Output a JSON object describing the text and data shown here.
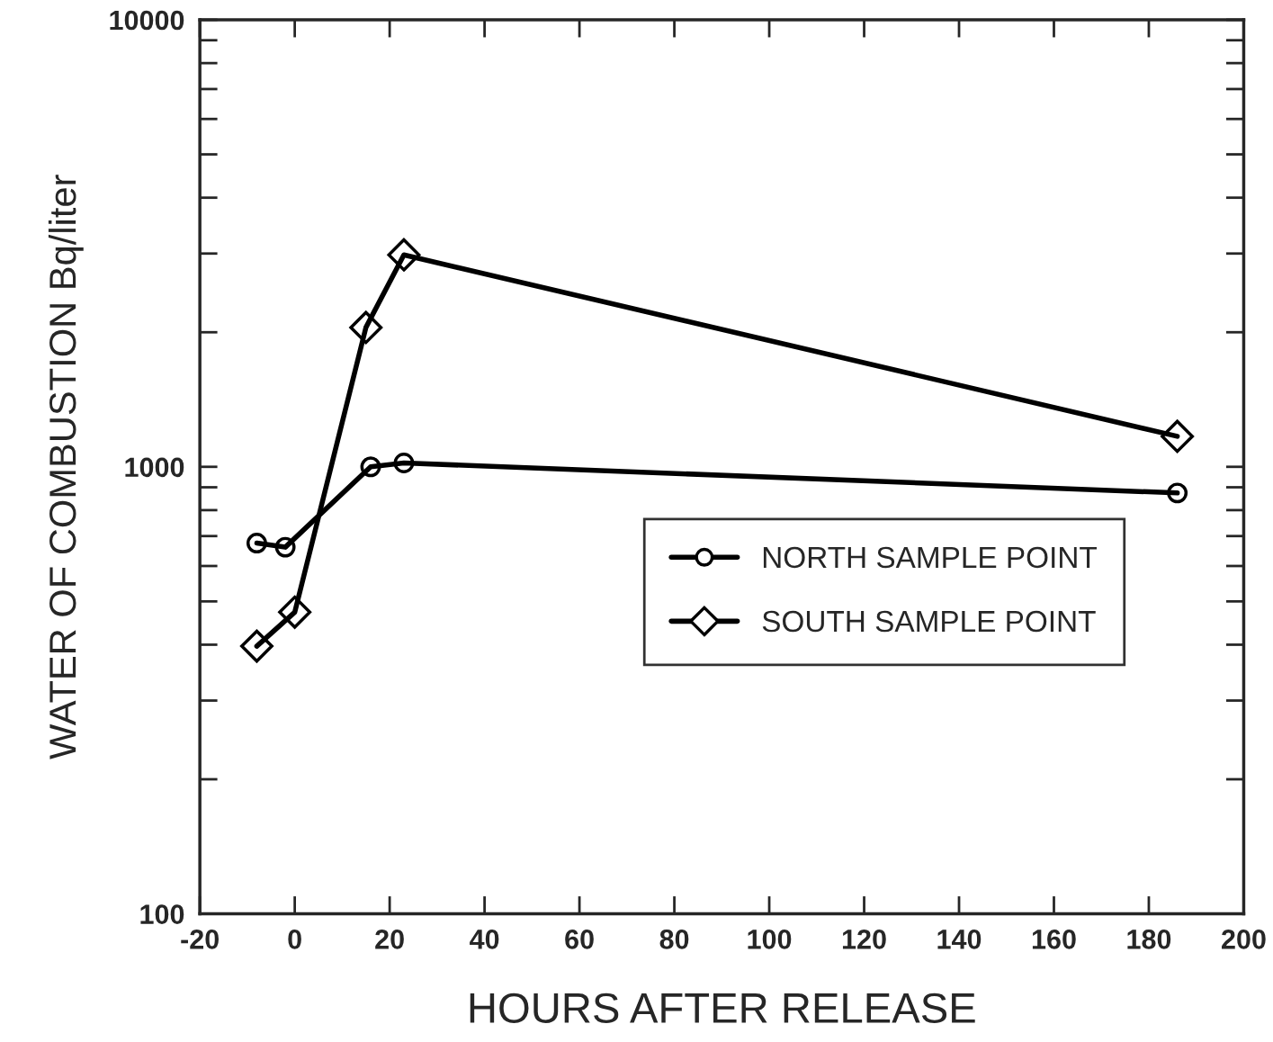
{
  "chart_data": {
    "type": "line",
    "xlabel": "HOURS AFTER RELEASE",
    "ylabel": "WATER OF COMBUSTION Bq/liter",
    "log": "y",
    "xlim": [
      -20,
      200
    ],
    "xticks": [
      -20,
      0,
      20,
      40,
      60,
      80,
      100,
      120,
      140,
      160,
      180,
      200
    ],
    "ylim": [
      100,
      10000
    ],
    "yticks": [
      100,
      1000,
      10000
    ],
    "grid": false,
    "legend": "right",
    "line_style": "solid",
    "series": [
      {
        "name": "NORTH SAMPLE POINT",
        "color": "#000000",
        "marker": "circle",
        "x": [
          -8,
          -2,
          16,
          23,
          186
        ],
        "values": [
          675,
          661,
          1000,
          1020,
          874
        ]
      },
      {
        "name": "SOUTH SAMPLE POINT",
        "color": "#000000",
        "marker": "diamond",
        "x": [
          -8,
          0,
          15,
          23,
          186
        ],
        "values": [
          397,
          473,
          2050,
          2980,
          1170
        ]
      }
    ]
  }
}
